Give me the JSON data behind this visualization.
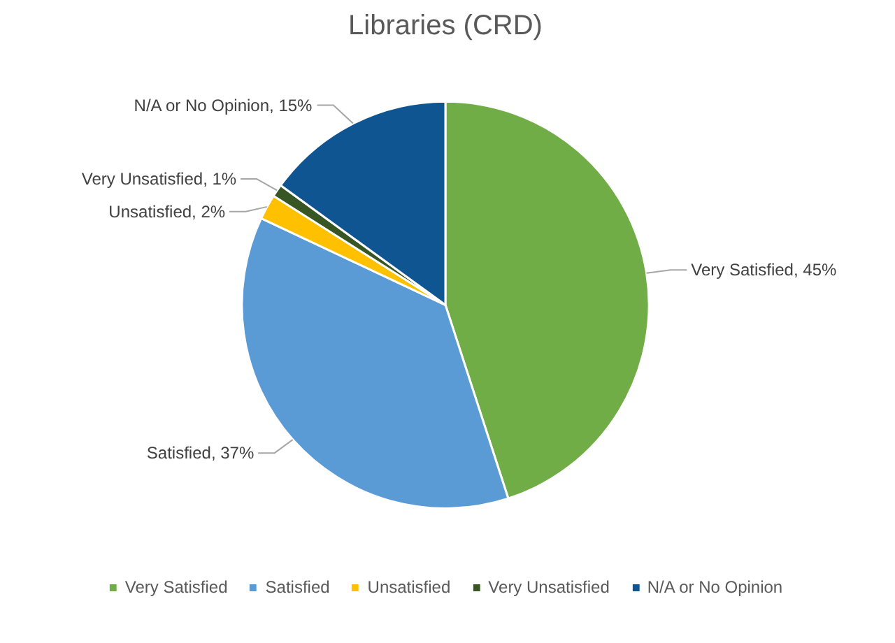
{
  "chart_data": {
    "type": "pie",
    "title": "Libraries (CRD)",
    "categories": [
      "Very Satisfied",
      "Satisfied",
      "Unsatisfied",
      "Very Unsatisfied",
      "N/A or No Opinion"
    ],
    "values": [
      45,
      37,
      2,
      1,
      15
    ],
    "colors": [
      "#70ad47",
      "#5b9bd5",
      "#ffc000",
      "#375623",
      "#0e5591"
    ],
    "value_labels": [
      "Very Satisfied, 45%",
      "Satisfied, 37%",
      "Unsatisfied, 2%",
      "Very Unsatisfied, 1%",
      "N/A or No Opinion, 15%"
    ],
    "legend": "bottom"
  }
}
